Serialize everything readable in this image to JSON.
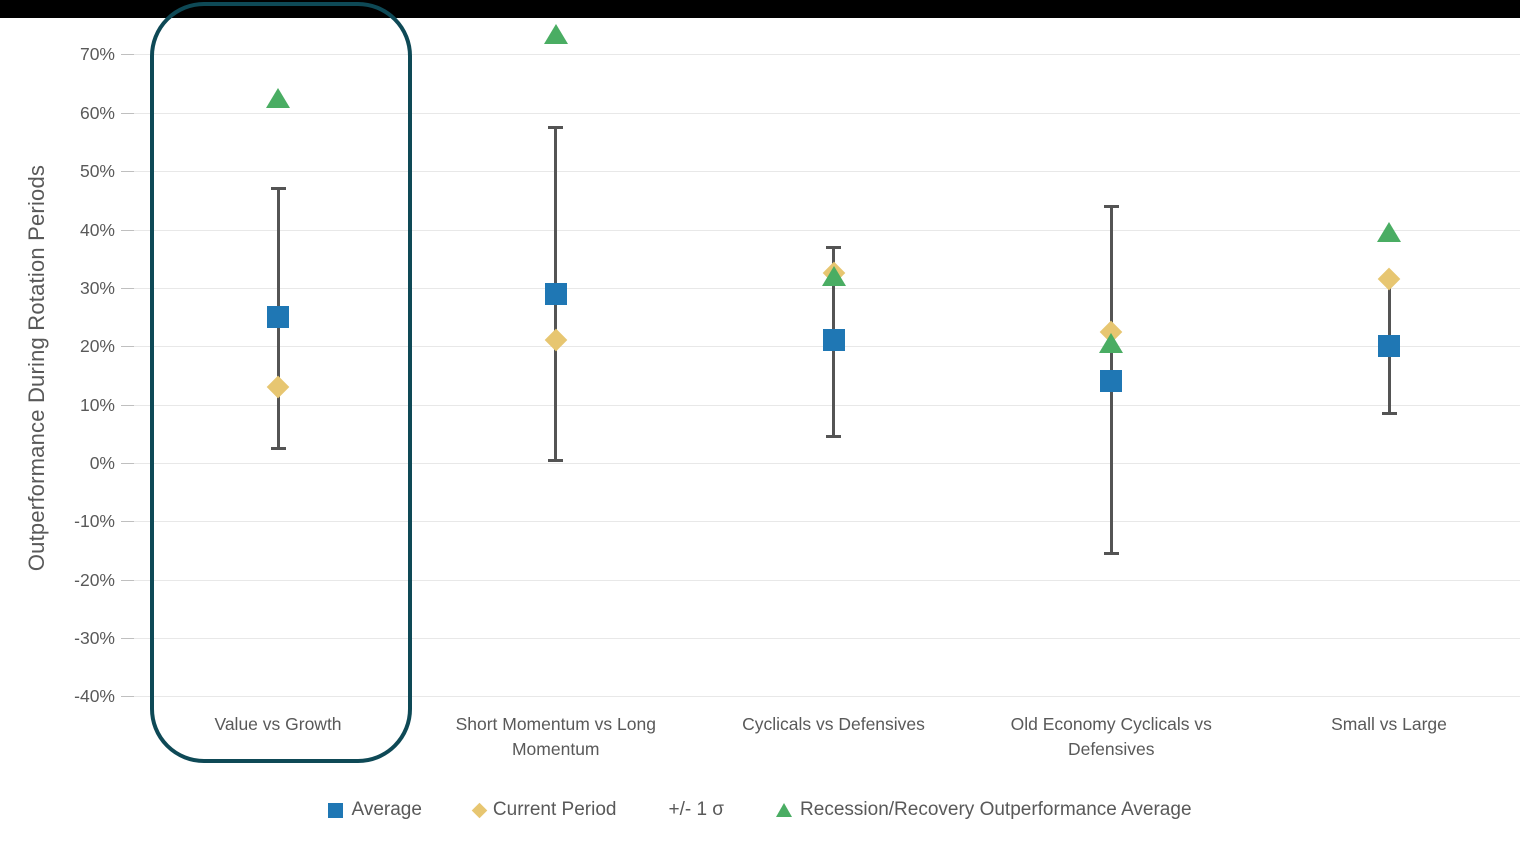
{
  "chrome": {
    "top_bar_color": "#000000",
    "background": "#FFFFFF"
  },
  "chart_data": {
    "type": "scatter",
    "title": "",
    "ylabel": "Outperformance During Rotation Periods",
    "xlabel": "",
    "ylim": [
      -45,
      76
    ],
    "grid": "horizontal gridlines every 10%",
    "legend_position": "bottom",
    "yticks": [
      {
        "value": 70,
        "label": "70%"
      },
      {
        "value": 60,
        "label": "60%"
      },
      {
        "value": 50,
        "label": "50%"
      },
      {
        "value": 40,
        "label": "40%"
      },
      {
        "value": 30,
        "label": "30%"
      },
      {
        "value": 20,
        "label": "20%"
      },
      {
        "value": 10,
        "label": "10%"
      },
      {
        "value": 0,
        "label": "0%"
      },
      {
        "value": -10,
        "label": "-10%"
      },
      {
        "value": -20,
        "label": "-20%"
      },
      {
        "value": -30,
        "label": "-30%"
      },
      {
        "value": -40,
        "label": "-40%"
      }
    ],
    "categories": [
      "Value vs Growth",
      "Short Momentum vs Long Momentum",
      "Cyclicals vs Defensives",
      "Old Economy Cyclicals vs Defensives",
      "Small vs Large"
    ],
    "series": [
      {
        "name": "Average",
        "marker": "square",
        "color": "#1F77B4",
        "values": [
          25,
          29,
          21,
          14,
          20
        ]
      },
      {
        "name": "Current Period",
        "marker": "diamond",
        "color": "#E7C671",
        "values": [
          13,
          21,
          32.5,
          22.5,
          31.5
        ]
      },
      {
        "name": "Recession/Recovery Outperformance Average",
        "marker": "triangle",
        "color": "#4AAD63",
        "values": [
          62.5,
          73.5,
          32,
          20.5,
          39.5
        ]
      }
    ],
    "error_bars": {
      "name": "+/- 1 σ",
      "color": "#545454",
      "high": [
        47,
        57.5,
        37,
        44,
        31.5
      ],
      "low": [
        2.5,
        0.5,
        4.5,
        -15.5,
        8.5
      ]
    },
    "highlight_box": {
      "category": "Value vs Growth",
      "color": "#0E4956"
    }
  },
  "legend": {
    "items": [
      {
        "label": "Average",
        "marker": "square",
        "color": "#1F77B4"
      },
      {
        "label": "Current Period",
        "marker": "diamond",
        "color": "#E7C671"
      },
      {
        "label": "+/- 1 σ",
        "marker": "none",
        "color": "#545454"
      },
      {
        "label": "Recession/Recovery Outperformance Average",
        "marker": "triangle",
        "color": "#4AAD63"
      }
    ]
  }
}
